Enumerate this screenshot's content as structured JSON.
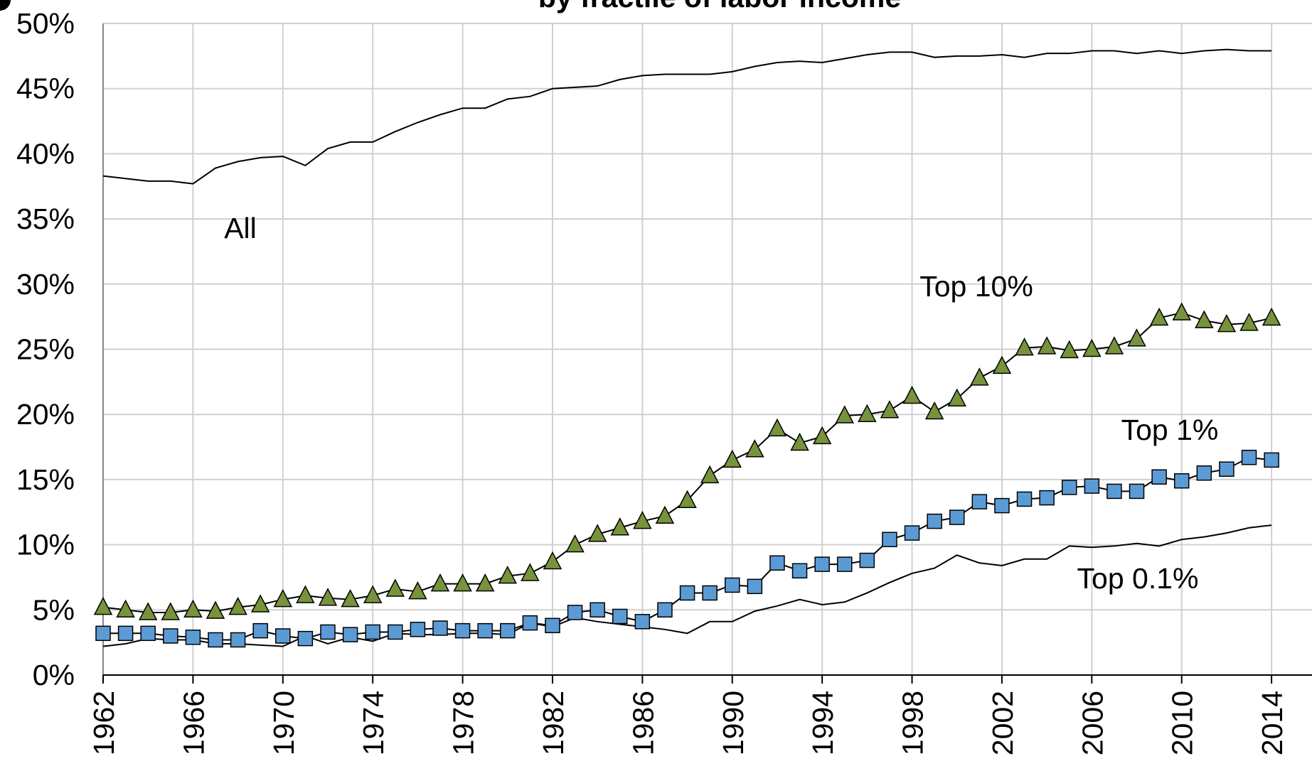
{
  "chart_data": {
    "type": "line",
    "title": "by fractile of labor income",
    "x": [
      1962,
      1963,
      1964,
      1965,
      1966,
      1967,
      1968,
      1969,
      1970,
      1971,
      1972,
      1973,
      1974,
      1975,
      1976,
      1977,
      1978,
      1979,
      1980,
      1981,
      1982,
      1983,
      1984,
      1985,
      1986,
      1987,
      1988,
      1989,
      1990,
      1991,
      1992,
      1993,
      1994,
      1995,
      1996,
      1997,
      1998,
      1999,
      2000,
      2001,
      2002,
      2003,
      2004,
      2005,
      2006,
      2007,
      2008,
      2009,
      2010,
      2011,
      2012,
      2013,
      2014
    ],
    "series": [
      {
        "name": "All",
        "color": "#000000",
        "marker": "circle",
        "values": [
          38.3,
          38.1,
          37.9,
          37.9,
          37.7,
          38.9,
          39.4,
          39.7,
          39.8,
          39.1,
          40.4,
          40.9,
          40.9,
          41.7,
          42.4,
          43.0,
          43.5,
          43.5,
          44.2,
          44.4,
          45.0,
          45.1,
          45.2,
          45.7,
          46.0,
          46.1,
          46.1,
          46.1,
          46.3,
          46.7,
          47.0,
          47.1,
          47.0,
          47.3,
          47.6,
          47.8,
          47.8,
          47.4,
          47.5,
          47.5,
          47.6,
          47.4,
          47.7,
          47.7,
          47.9,
          47.9,
          47.7,
          47.9,
          47.7,
          47.9,
          48.0,
          47.9,
          47.9
        ]
      },
      {
        "name": "Top 10%",
        "color": "#77933c",
        "marker": "triangle",
        "values": [
          5.2,
          5.0,
          4.8,
          4.8,
          5.0,
          4.9,
          5.2,
          5.4,
          5.8,
          6.1,
          5.9,
          5.8,
          6.1,
          6.6,
          6.4,
          7.0,
          7.0,
          7.0,
          7.6,
          7.8,
          8.7,
          10.0,
          10.8,
          11.3,
          11.8,
          12.2,
          13.4,
          15.3,
          16.5,
          17.3,
          18.9,
          17.8,
          18.3,
          19.9,
          20.0,
          20.3,
          21.4,
          20.2,
          21.2,
          22.8,
          23.7,
          25.1,
          25.2,
          24.9,
          25.0,
          25.2,
          25.8,
          27.4,
          27.8,
          27.2,
          26.9,
          27.0,
          27.4
        ]
      },
      {
        "name": "Top 1%",
        "color": "#5b9bd5",
        "marker": "square",
        "values": [
          3.2,
          3.2,
          3.2,
          3.0,
          2.9,
          2.7,
          2.7,
          3.4,
          3.0,
          2.8,
          3.3,
          3.1,
          3.3,
          3.3,
          3.5,
          3.6,
          3.4,
          3.4,
          3.4,
          4.0,
          3.8,
          4.8,
          5.0,
          4.5,
          4.1,
          5.0,
          6.3,
          6.3,
          6.9,
          6.8,
          8.6,
          8.0,
          8.5,
          8.5,
          8.8,
          10.4,
          10.9,
          11.8,
          12.1,
          13.3,
          13.0,
          13.5,
          13.6,
          14.4,
          14.5,
          14.1,
          14.1,
          15.2,
          14.9,
          15.5,
          15.8,
          16.7,
          16.5
        ]
      },
      {
        "name": "Top 0.1%",
        "color": "#ff0000",
        "marker": "circle",
        "values": [
          2.2,
          2.4,
          2.8,
          2.7,
          2.7,
          2.4,
          2.4,
          2.3,
          2.2,
          3.0,
          2.4,
          2.9,
          2.6,
          3.2,
          3.1,
          3.1,
          3.2,
          3.2,
          3.1,
          4.0,
          3.7,
          4.4,
          4.1,
          3.9,
          3.7,
          3.5,
          3.2,
          4.1,
          4.1,
          4.9,
          5.3,
          5.8,
          5.4,
          5.6,
          6.3,
          7.1,
          7.8,
          8.2,
          9.2,
          8.6,
          8.4,
          8.9,
          8.9,
          9.9,
          9.8,
          9.9,
          10.1,
          9.9,
          10.4,
          10.6,
          10.9,
          11.3,
          11.5
        ]
      }
    ],
    "xlim": [
      1962,
      2015.8
    ],
    "xticks": [
      1962,
      1966,
      1970,
      1974,
      1978,
      1982,
      1986,
      1990,
      1994,
      1998,
      2002,
      2006,
      2010,
      2014
    ],
    "ylim": [
      0,
      50
    ],
    "yticks": [
      {
        "value": 0,
        "label": "0%"
      },
      {
        "value": 5,
        "label": "5%"
      },
      {
        "value": 10,
        "label": "10%"
      },
      {
        "value": 15,
        "label": "15%"
      },
      {
        "value": 20,
        "label": "20%"
      },
      {
        "value": 25,
        "label": "25%"
      },
      {
        "value": 30,
        "label": "30%"
      },
      {
        "value": 35,
        "label": "35%"
      },
      {
        "value": 40,
        "label": "40%"
      },
      {
        "value": 45,
        "label": "45%"
      },
      {
        "value": 50,
        "label": "50%"
      }
    ],
    "grid": true
  }
}
